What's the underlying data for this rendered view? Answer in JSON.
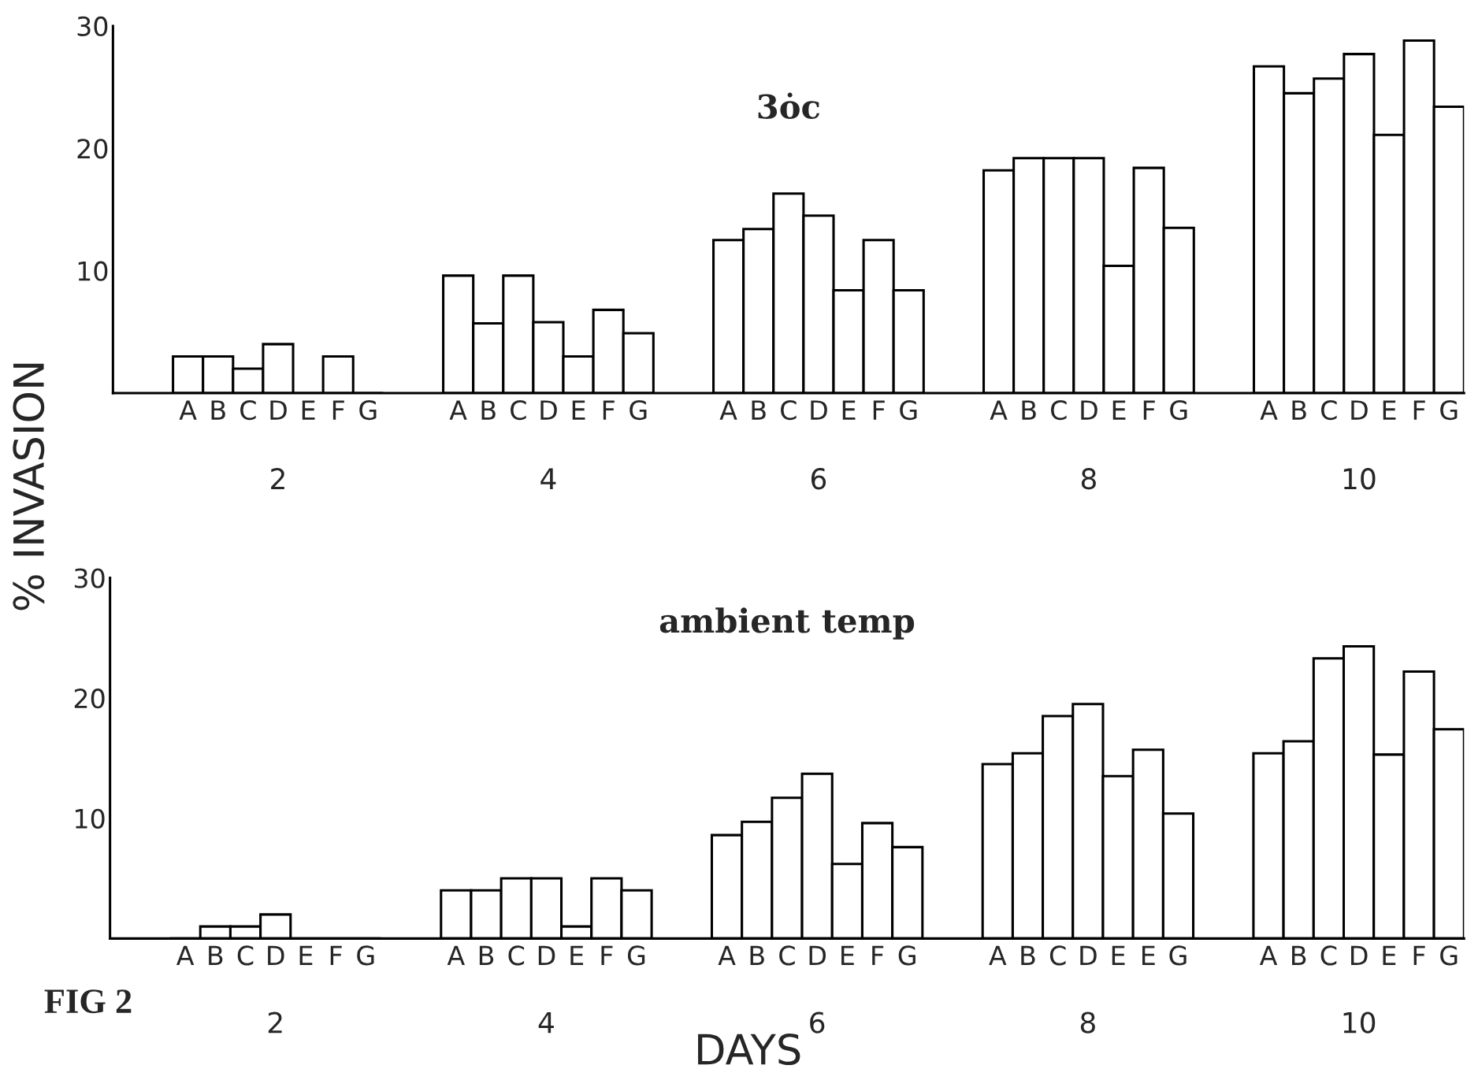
{
  "chart_data": [
    {
      "type": "bar",
      "title": "3ȯc",
      "ylabel": "% INVASION",
      "categories": [
        null,
        null,
        "A",
        "B",
        "C",
        "D",
        "E",
        "F",
        "G",
        null,
        null,
        "A",
        "B",
        "C",
        "D",
        "E",
        "F",
        "G",
        null,
        null,
        "A",
        "B",
        "C",
        "D",
        "E",
        "F",
        "G",
        null,
        null,
        "A",
        "B",
        "C",
        "D",
        "E",
        "F",
        "G",
        null,
        null,
        "A",
        "B",
        "C",
        "D",
        "E",
        "F",
        "G"
      ],
      "series": [
        {
          "color": "#ffffff",
          "values": [
            null,
            null,
            3,
            3,
            2,
            4,
            0,
            3,
            0,
            null,
            null,
            9.6,
            5.7,
            9.6,
            5.8,
            3,
            6.8,
            4.9,
            null,
            null,
            12.5,
            13.4,
            16.3,
            14.5,
            8.4,
            12.5,
            8.4,
            null,
            null,
            18.2,
            19.2,
            19.2,
            19.2,
            10.4,
            18.4,
            13.5,
            null,
            null,
            26.7,
            24.5,
            25.7,
            27.7,
            21.1,
            28.8,
            23.4
          ]
        }
      ],
      "ylim": [
        0,
        30
      ],
      "yticks": [
        10,
        20,
        30
      ],
      "annotations": [
        "2",
        "4",
        "6",
        "8",
        "10"
      ]
    },
    {
      "type": "bar",
      "title": "ambient temp",
      "xlabel": "DAYS",
      "categories": [
        null,
        null,
        "A",
        "B",
        "C",
        "D",
        "E",
        "F",
        "G",
        null,
        null,
        "A",
        "B",
        "C",
        "D",
        "E",
        "F",
        "G",
        null,
        null,
        "A",
        "B",
        "C",
        "D",
        "E",
        "F",
        "G",
        null,
        null,
        "A",
        "B",
        "C",
        "D",
        "E",
        "E",
        "G",
        null,
        null,
        "A",
        "B",
        "C",
        "D",
        "E",
        "F",
        "G"
      ],
      "series": [
        {
          "color": "#ffffff",
          "values": [
            null,
            null,
            0,
            1,
            1,
            2,
            0,
            0,
            0,
            null,
            null,
            4,
            4,
            5,
            5,
            1,
            5,
            4,
            null,
            null,
            8.6,
            9.7,
            11.7,
            13.7,
            6.2,
            9.6,
            7.6,
            null,
            null,
            14.5,
            15.4,
            18.5,
            19.5,
            13.5,
            15.7,
            10.4,
            null,
            null,
            15.4,
            16.4,
            23.3,
            24.3,
            15.3,
            22.2,
            17.4
          ]
        }
      ],
      "ylim": [
        0,
        30
      ],
      "yticks": [
        10,
        20,
        30
      ],
      "annotations": [
        "2",
        "4",
        "6",
        "8",
        "10",
        "FIG 2"
      ]
    }
  ]
}
